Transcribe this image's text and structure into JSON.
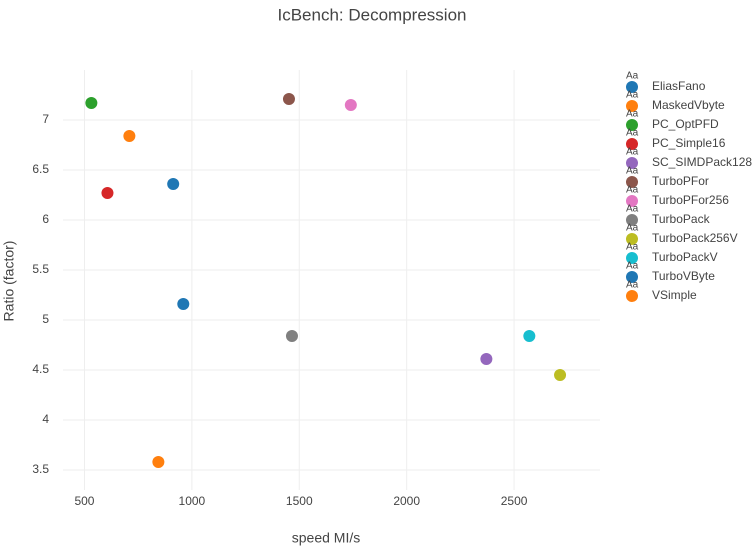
{
  "chart_data": {
    "type": "scatter",
    "title": "IcBench: Decompression",
    "x_label": "speed MI/s",
    "y_label": "Ratio (factor)",
    "legend_symbol_text": "Aa",
    "xlim": [
      400,
      2900
    ],
    "xticks": [
      500,
      1000,
      1500,
      2000,
      2500
    ],
    "ylim": [
      3.3,
      7.5
    ],
    "yticks": [
      3.5,
      4,
      4.5,
      5,
      5.5,
      6,
      6.5,
      7
    ],
    "grid": true,
    "legend": "right",
    "series": [
      {
        "name": "EliasFano",
        "color": "#1f77b4",
        "x": [
          913
        ],
        "values": [
          6.36
        ]
      },
      {
        "name": "MaskedVbyte",
        "color": "#ff7f0e",
        "x": [
          709
        ],
        "values": [
          6.84
        ]
      },
      {
        "name": "PC_OptPFD",
        "color": "#2ca02c",
        "x": [
          532
        ],
        "values": [
          7.17
        ]
      },
      {
        "name": "PC_Simple16",
        "color": "#d62728",
        "x": [
          607
        ],
        "values": [
          6.27
        ]
      },
      {
        "name": "SC_SIMDPack128",
        "color": "#9467bd",
        "x": [
          2371
        ],
        "values": [
          4.61
        ]
      },
      {
        "name": "TurboPFor",
        "color": "#8c564b",
        "x": [
          1452
        ],
        "values": [
          7.21
        ]
      },
      {
        "name": "TurboPFor256",
        "color": "#e377c2",
        "x": [
          1740
        ],
        "values": [
          7.15
        ]
      },
      {
        "name": "TurboPack",
        "color": "#7f7f7f",
        "x": [
          1466
        ],
        "values": [
          4.84
        ]
      },
      {
        "name": "TurboPack256V",
        "color": "#bcbd22",
        "x": [
          2714
        ],
        "values": [
          4.45
        ]
      },
      {
        "name": "TurboPackV",
        "color": "#17becf",
        "x": [
          2571
        ],
        "values": [
          4.84
        ]
      },
      {
        "name": "TurboVByte",
        "color": "#1f77b4",
        "x": [
          960
        ],
        "values": [
          5.16
        ]
      },
      {
        "name": "VSimple",
        "color": "#ff7f0e",
        "x": [
          844
        ],
        "values": [
          3.58
        ]
      }
    ]
  }
}
